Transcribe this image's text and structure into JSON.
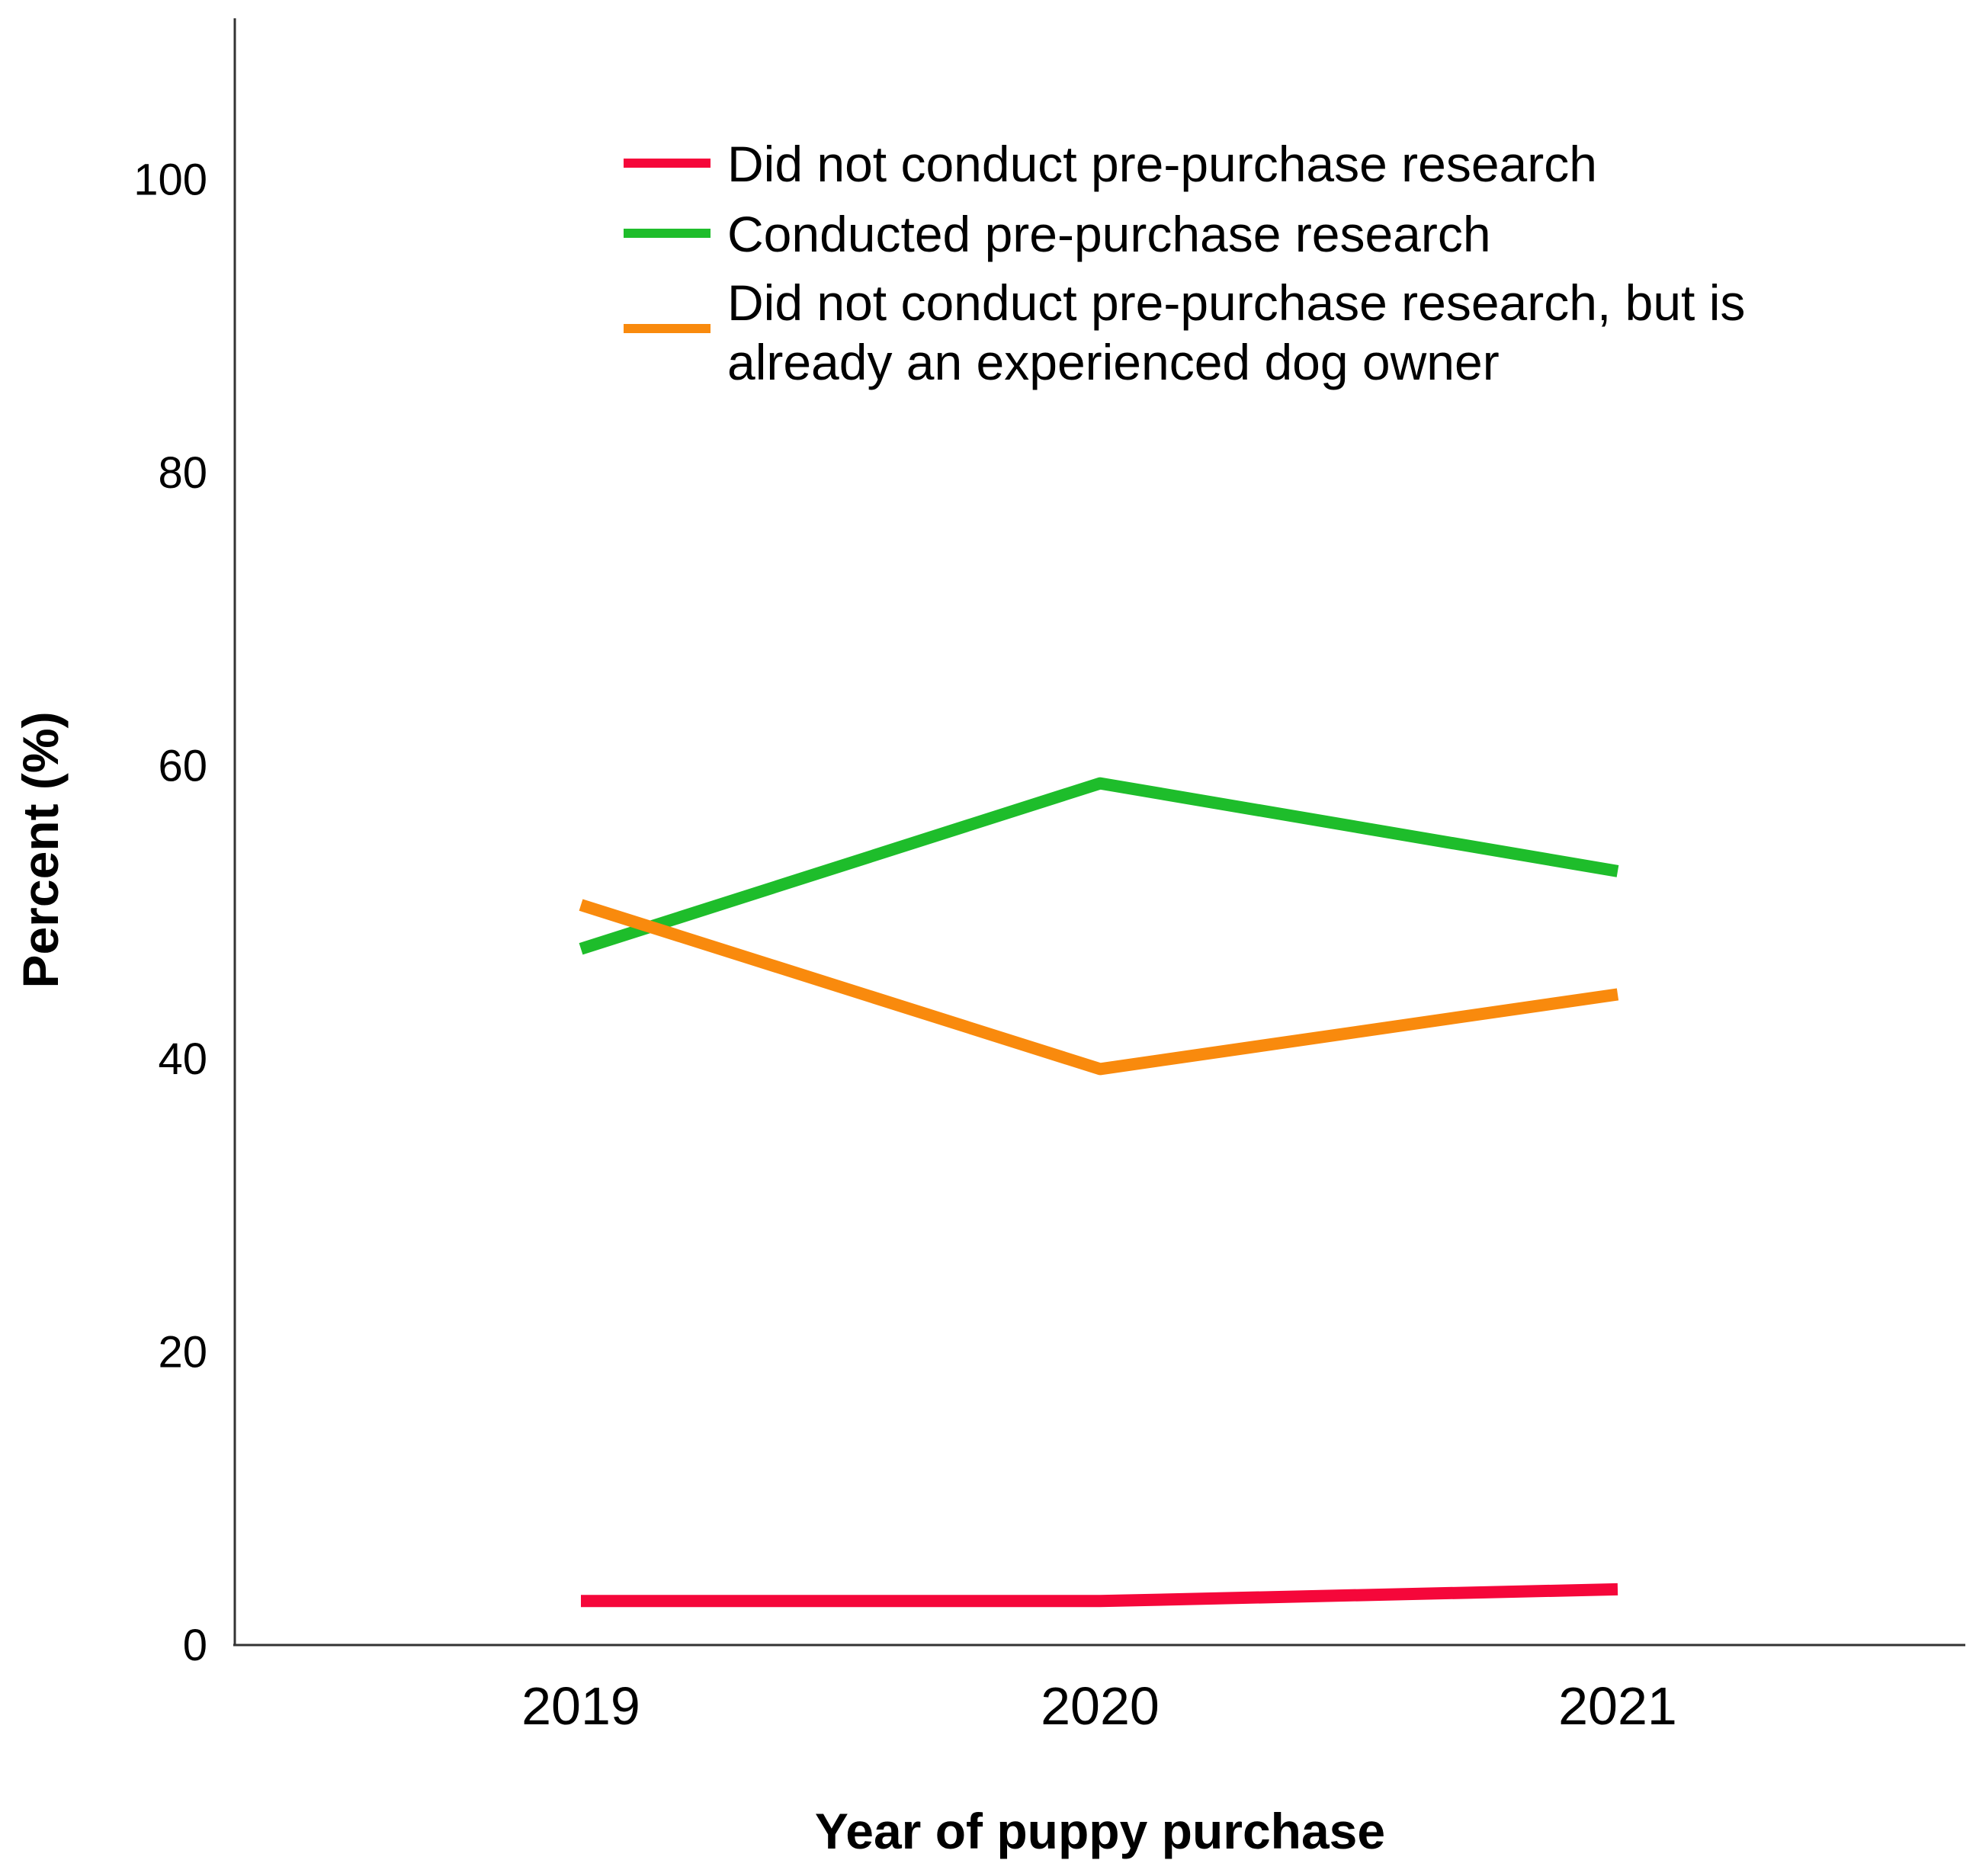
{
  "chart_data": {
    "type": "line",
    "title": "",
    "xlabel": "Year of puppy purchase",
    "ylabel": "Percent (%)",
    "categories": [
      "2019",
      "2020",
      "2021"
    ],
    "x_tick_labels": [
      "2019",
      "2020",
      "2021"
    ],
    "y_tick_labels": [
      "0",
      "20",
      "40",
      "60",
      "80",
      "100"
    ],
    "y_ticks": [
      0,
      20,
      40,
      60,
      80,
      100
    ],
    "ylim": [
      0,
      111
    ],
    "grid": false,
    "legend_position": "top-right",
    "series": [
      {
        "name": "Did not conduct pre-purchase research",
        "legend_lines": [
          "Did not conduct pre-purchase research"
        ],
        "color": "#f5073a",
        "values": [
          3.0,
          3.0,
          3.8
        ]
      },
      {
        "name": "Conducted pre-purchase research",
        "legend_lines": [
          "Conducted pre-purchase research"
        ],
        "color": "#1ebd2b",
        "values": [
          47.5,
          58.8,
          52.8
        ]
      },
      {
        "name": "Did not conduct pre-purchase research, but is already an experienced dog owner",
        "legend_lines": [
          "Did not conduct pre-purchase research, but is",
          "already an experienced dog owner"
        ],
        "color": "#f98a0d",
        "values": [
          50.5,
          39.3,
          44.4
        ]
      }
    ]
  }
}
